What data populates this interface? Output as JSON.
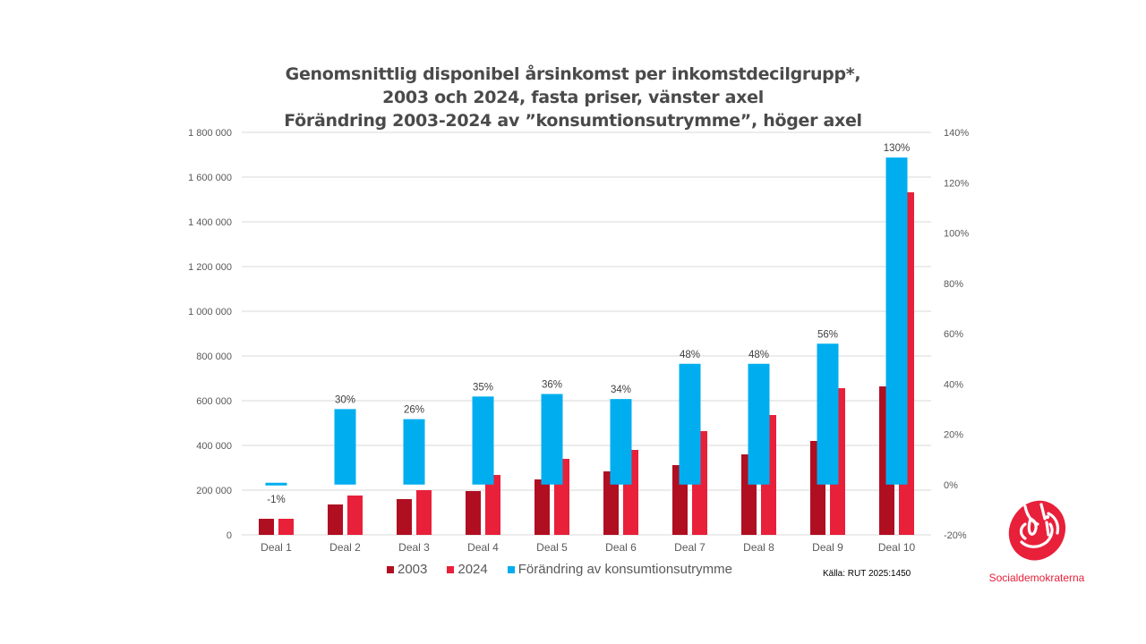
{
  "colors": {
    "series_2003": "#B00F21",
    "series_2024": "#E8203A",
    "series_change": "#00AEEF",
    "grid": "#d9d9d9",
    "brand_red": "#E8203A"
  },
  "chart_data": {
    "type": "bar",
    "title_lines": [
      "Genomsnittlig disponibel årsinkomst per inkomstdecilgrupp*,",
      "2003 och 2024, fasta priser, vänster axel",
      "Förändring 2003-2024 av ”konsumtionsutrymme”, höger axel"
    ],
    "categories": [
      "Deal 1",
      "Deal 2",
      "Deal 3",
      "Deal 4",
      "Deal 5",
      "Deal 6",
      "Deal 7",
      "Deal 8",
      "Deal 9",
      "Deal 10"
    ],
    "series": [
      {
        "name": "2003",
        "axis": "left",
        "values": [
          72000,
          136000,
          160000,
          196000,
          248000,
          284000,
          312000,
          360000,
          420000,
          664000
        ]
      },
      {
        "name": "2024",
        "axis": "left",
        "values": [
          72000,
          176000,
          200000,
          268000,
          340000,
          380000,
          464000,
          536000,
          656000,
          1532000
        ]
      },
      {
        "name": "Förändring av konsumtionsutrymme",
        "axis": "right",
        "values": [
          -1,
          30,
          26,
          35,
          36,
          34,
          48,
          48,
          56,
          130
        ],
        "data_labels": [
          "-1%",
          "30%",
          "26%",
          "35%",
          "36%",
          "34%",
          "48%",
          "48%",
          "56%",
          "130%"
        ]
      }
    ],
    "left_axis": {
      "ylim": [
        0,
        1800000
      ],
      "ticks": [
        0,
        200000,
        400000,
        600000,
        800000,
        1000000,
        1200000,
        1400000,
        1600000,
        1800000
      ],
      "tick_labels": [
        "0",
        "200 000",
        "400 000",
        "600 000",
        "800 000",
        "1 000 000",
        "1 200 000",
        "1 400 000",
        "1 600 000",
        "1 800 000"
      ]
    },
    "right_axis": {
      "ylim": [
        -20,
        140
      ],
      "ticks": [
        -20,
        0,
        20,
        40,
        60,
        80,
        100,
        120,
        140
      ],
      "tick_labels": [
        "-20%",
        "0%",
        "20%",
        "40%",
        "60%",
        "80%",
        "100%",
        "120%",
        "140%"
      ]
    },
    "grid": true,
    "legend": {
      "placement": "bottom",
      "entries": [
        "2003",
        "2024",
        "Förändring av konsumtionsutrymme"
      ]
    }
  },
  "source": "Källa: RUT 2025:1450",
  "logo": {
    "text": "Socialdemokraterna",
    "icon": "rose-icon"
  }
}
